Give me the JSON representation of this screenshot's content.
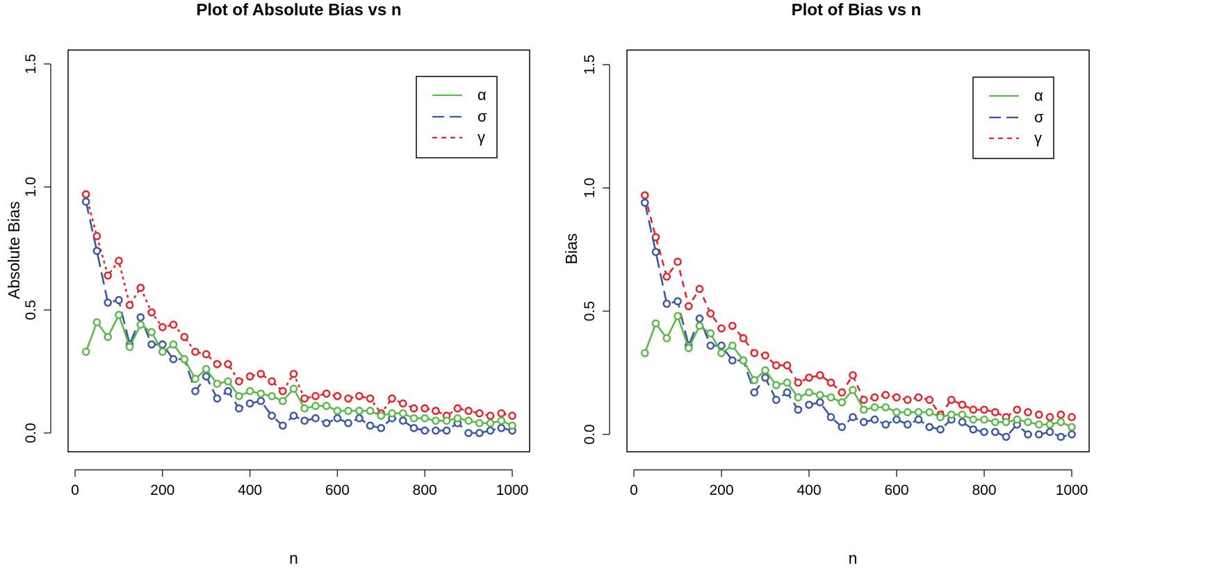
{
  "colors": {
    "alpha": "#5cb84a",
    "sigma": "#3a55a4",
    "gamma": "#e8202a",
    "frame": "#000000"
  },
  "chart_data": [
    {
      "type": "line",
      "title": "Plot of Absolute Bias vs n",
      "xlabel": "n",
      "ylabel": "Absolute Bias",
      "xlim": [
        0,
        1000
      ],
      "ylim": [
        0,
        1.5
      ],
      "xticks": [
        0,
        200,
        400,
        600,
        800,
        1000
      ],
      "yticks": [
        0.0,
        0.5,
        1.0,
        1.5
      ],
      "ytick_labels": [
        "0.0",
        "0.5",
        "1.0",
        "1.5"
      ],
      "legend": [
        "α",
        "σ",
        "γ"
      ],
      "legend_position": "top-right",
      "x": [
        25,
        50,
        75,
        100,
        125,
        150,
        175,
        200,
        225,
        250,
        275,
        300,
        325,
        350,
        375,
        400,
        425,
        450,
        475,
        500,
        525,
        550,
        575,
        600,
        625,
        650,
        675,
        700,
        725,
        750,
        775,
        800,
        825,
        850,
        875,
        900,
        925,
        950,
        975,
        1000
      ],
      "series": [
        {
          "name": "α",
          "style": "solid",
          "values": [
            0.33,
            0.45,
            0.39,
            0.48,
            0.35,
            0.44,
            0.41,
            0.33,
            0.36,
            0.3,
            0.22,
            0.26,
            0.2,
            0.21,
            0.15,
            0.17,
            0.16,
            0.15,
            0.13,
            0.18,
            0.1,
            0.11,
            0.11,
            0.09,
            0.09,
            0.09,
            0.09,
            0.07,
            0.08,
            0.08,
            0.06,
            0.06,
            0.05,
            0.05,
            0.06,
            0.05,
            0.04,
            0.04,
            0.05,
            0.03
          ]
        },
        {
          "name": "σ",
          "style": "longdash",
          "values": [
            0.94,
            0.74,
            0.53,
            0.54,
            0.36,
            0.47,
            0.36,
            0.36,
            0.3,
            0.3,
            0.17,
            0.23,
            0.14,
            0.17,
            0.1,
            0.12,
            0.13,
            0.07,
            0.03,
            0.07,
            0.05,
            0.06,
            0.04,
            0.06,
            0.04,
            0.06,
            0.03,
            0.02,
            0.06,
            0.05,
            0.02,
            0.01,
            0.01,
            0.01,
            0.04,
            0.0,
            0.0,
            0.01,
            0.02,
            0.01
          ]
        },
        {
          "name": "γ",
          "style": "dotted",
          "values": [
            0.97,
            0.8,
            0.64,
            0.7,
            0.52,
            0.59,
            0.49,
            0.43,
            0.44,
            0.39,
            0.33,
            0.32,
            0.28,
            0.28,
            0.21,
            0.23,
            0.24,
            0.21,
            0.17,
            0.24,
            0.14,
            0.15,
            0.16,
            0.15,
            0.14,
            0.15,
            0.14,
            0.08,
            0.14,
            0.12,
            0.1,
            0.1,
            0.09,
            0.07,
            0.1,
            0.09,
            0.08,
            0.07,
            0.08,
            0.07
          ]
        }
      ]
    },
    {
      "type": "line",
      "title": "Plot of Bias vs n",
      "xlabel": "n",
      "ylabel": "Bias",
      "xlim": [
        0,
        1000
      ],
      "ylim": [
        0,
        1.5
      ],
      "xticks": [
        0,
        200,
        400,
        600,
        800,
        1000
      ],
      "yticks": [
        0.0,
        0.5,
        1.0,
        1.5
      ],
      "ytick_labels": [
        "0.0",
        "0.5",
        "1.0",
        "1.5"
      ],
      "legend": [
        "α",
        "σ",
        "γ"
      ],
      "legend_position": "top-right",
      "x": [
        25,
        50,
        75,
        100,
        125,
        150,
        175,
        200,
        225,
        250,
        275,
        300,
        325,
        350,
        375,
        400,
        425,
        450,
        475,
        500,
        525,
        550,
        575,
        600,
        625,
        650,
        675,
        700,
        725,
        750,
        775,
        800,
        825,
        850,
        875,
        900,
        925,
        950,
        975,
        1000
      ],
      "series": [
        {
          "name": "α",
          "style": "solid",
          "values": [
            0.33,
            0.45,
            0.39,
            0.48,
            0.35,
            0.44,
            0.41,
            0.33,
            0.36,
            0.3,
            0.22,
            0.26,
            0.2,
            0.21,
            0.15,
            0.17,
            0.16,
            0.15,
            0.13,
            0.18,
            0.1,
            0.11,
            0.11,
            0.09,
            0.09,
            0.09,
            0.09,
            0.07,
            0.08,
            0.08,
            0.06,
            0.06,
            0.05,
            0.05,
            0.06,
            0.05,
            0.04,
            0.04,
            0.05,
            0.03
          ]
        },
        {
          "name": "σ",
          "style": "longdash",
          "values": [
            0.94,
            0.74,
            0.53,
            0.54,
            0.36,
            0.47,
            0.36,
            0.36,
            0.3,
            0.3,
            0.17,
            0.23,
            0.14,
            0.17,
            0.1,
            0.12,
            0.13,
            0.07,
            0.03,
            0.07,
            0.05,
            0.06,
            0.04,
            0.06,
            0.04,
            0.06,
            0.03,
            0.02,
            0.06,
            0.05,
            0.02,
            0.01,
            0.01,
            -0.01,
            0.04,
            0.0,
            0.0,
            0.01,
            -0.01,
            0.0
          ]
        },
        {
          "name": "γ",
          "style": "dashed",
          "values": [
            0.97,
            0.8,
            0.64,
            0.7,
            0.52,
            0.59,
            0.49,
            0.43,
            0.44,
            0.39,
            0.33,
            0.32,
            0.28,
            0.28,
            0.21,
            0.23,
            0.24,
            0.21,
            0.17,
            0.24,
            0.14,
            0.15,
            0.16,
            0.15,
            0.14,
            0.15,
            0.14,
            0.08,
            0.14,
            0.12,
            0.1,
            0.1,
            0.09,
            0.07,
            0.1,
            0.09,
            0.08,
            0.07,
            0.08,
            0.07
          ]
        }
      ]
    }
  ]
}
